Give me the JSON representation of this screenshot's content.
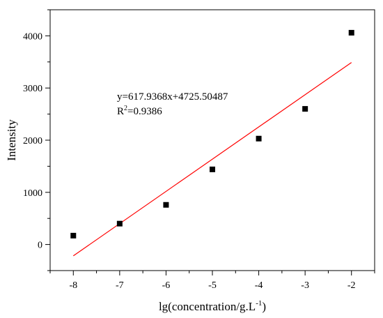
{
  "chart_data": {
    "type": "scatter",
    "title": "",
    "xlabel": "lg(concentration/g.L",
    "xlabel_sup": "-1",
    "xlabel_tail": ")",
    "ylabel": "Intensity",
    "xlim": [
      -8.5,
      -1.5
    ],
    "ylim": [
      -500,
      4500
    ],
    "x_ticks": [
      -8,
      -7,
      -6,
      -5,
      -4,
      -3,
      -2
    ],
    "x_tick_labels": [
      "-8",
      "-7",
      "-6",
      "-5",
      "-4",
      "-3",
      "-2"
    ],
    "y_ticks": [
      0,
      1000,
      2000,
      3000,
      4000
    ],
    "y_tick_labels": [
      "0",
      "1000",
      "2000",
      "3000",
      "4000"
    ],
    "grid": false,
    "series": [
      {
        "marker": "square",
        "color": "#000000",
        "points": [
          {
            "x": -8,
            "y": 170
          },
          {
            "x": -7,
            "y": 400
          },
          {
            "x": -6,
            "y": 760
          },
          {
            "x": -5,
            "y": 1440
          },
          {
            "x": -4,
            "y": 2030
          },
          {
            "x": -3,
            "y": 2600
          },
          {
            "x": -2,
            "y": 4060
          }
        ]
      }
    ],
    "fit_line": {
      "color": "#ff0000",
      "slope": 617.9368,
      "intercept": 4725.50487,
      "x_range": [
        -8,
        -2
      ]
    },
    "annotations": {
      "equation": "y=617.9368x+4725.50487",
      "r2_prefix": "R",
      "r2_sup": "2",
      "r2_value": "=0.9386"
    }
  }
}
